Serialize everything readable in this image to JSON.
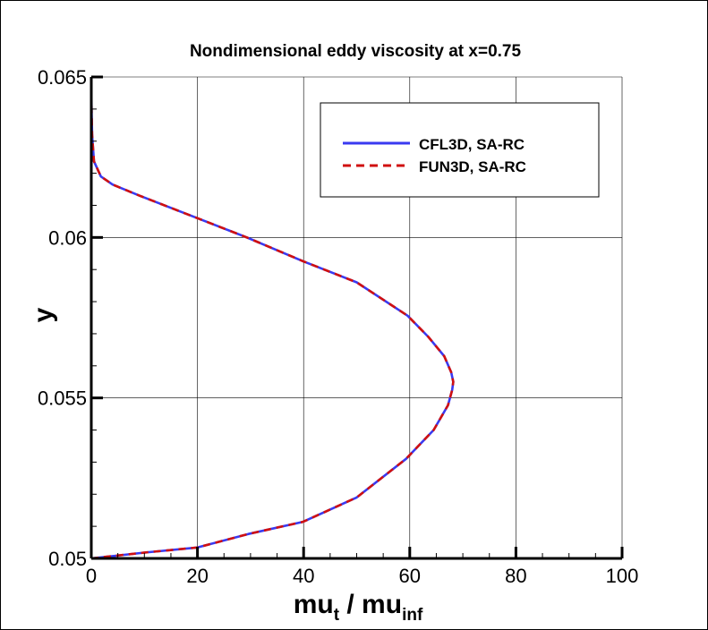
{
  "chart_data": {
    "type": "line",
    "title": "Nondimensional eddy viscosity at x=0.75",
    "xlabel": {
      "main": "mu",
      "sub1": "t",
      "sep": " / mu",
      "sub2": "inf"
    },
    "ylabel": "y",
    "xlim": [
      0,
      100
    ],
    "ylim": [
      0.05,
      0.065
    ],
    "xticks": [
      0,
      20,
      40,
      60,
      80,
      100
    ],
    "xtick_labels": [
      "0",
      "20",
      "40",
      "60",
      "80",
      "100"
    ],
    "yticks": [
      0.05,
      0.055,
      0.06,
      0.065
    ],
    "ytick_labels": [
      "0.05",
      "0.055",
      "0.06",
      "0.065"
    ],
    "x_minor_step": 5,
    "y_minor_step": 0.001,
    "grid": true,
    "legend_position": "top-right",
    "series": [
      {
        "name": "CFL3D, SA-RC",
        "color": "#3a3af0",
        "style": "solid",
        "points": [
          [
            0,
            0.05
          ],
          [
            10,
            0.05018
          ],
          [
            20,
            0.05034
          ],
          [
            29.6,
            0.05076
          ],
          [
            39.9,
            0.05114
          ],
          [
            50,
            0.0519
          ],
          [
            59.3,
            0.0531
          ],
          [
            64.5,
            0.054
          ],
          [
            67.2,
            0.05477
          ],
          [
            68,
            0.05525
          ],
          [
            68.2,
            0.0555
          ],
          [
            67.8,
            0.0558
          ],
          [
            66.5,
            0.0563
          ],
          [
            63.5,
            0.0569
          ],
          [
            59.6,
            0.05756
          ],
          [
            50,
            0.0586
          ],
          [
            39.9,
            0.05926
          ],
          [
            29.3,
            0.06
          ],
          [
            20,
            0.0606
          ],
          [
            9.1,
            0.0613
          ],
          [
            4,
            0.06165
          ],
          [
            1.8,
            0.0619
          ],
          [
            0.5,
            0.06237
          ],
          [
            0.15,
            0.0632
          ],
          [
            0.05,
            0.064
          ],
          [
            0,
            0.065
          ]
        ]
      },
      {
        "name": "FUN3D, SA-RC",
        "color": "#d01010",
        "style": "dashed",
        "points": [
          [
            0,
            0.05
          ],
          [
            10,
            0.05018
          ],
          [
            20,
            0.05034
          ],
          [
            29.6,
            0.05076
          ],
          [
            39.9,
            0.05114
          ],
          [
            50,
            0.0519
          ],
          [
            59.3,
            0.0531
          ],
          [
            64.5,
            0.054
          ],
          [
            67.2,
            0.05477
          ],
          [
            68,
            0.05525
          ],
          [
            68.2,
            0.0555
          ],
          [
            67.8,
            0.0558
          ],
          [
            66.5,
            0.0563
          ],
          [
            63.5,
            0.0569
          ],
          [
            59.6,
            0.05756
          ],
          [
            50,
            0.0586
          ],
          [
            39.9,
            0.05926
          ],
          [
            29.3,
            0.06
          ],
          [
            20,
            0.0606
          ],
          [
            9.1,
            0.0613
          ],
          [
            4,
            0.06165
          ],
          [
            1.8,
            0.0619
          ],
          [
            0.5,
            0.06237
          ],
          [
            0.15,
            0.0632
          ],
          [
            0.05,
            0.064
          ],
          [
            0,
            0.065
          ]
        ]
      }
    ]
  }
}
